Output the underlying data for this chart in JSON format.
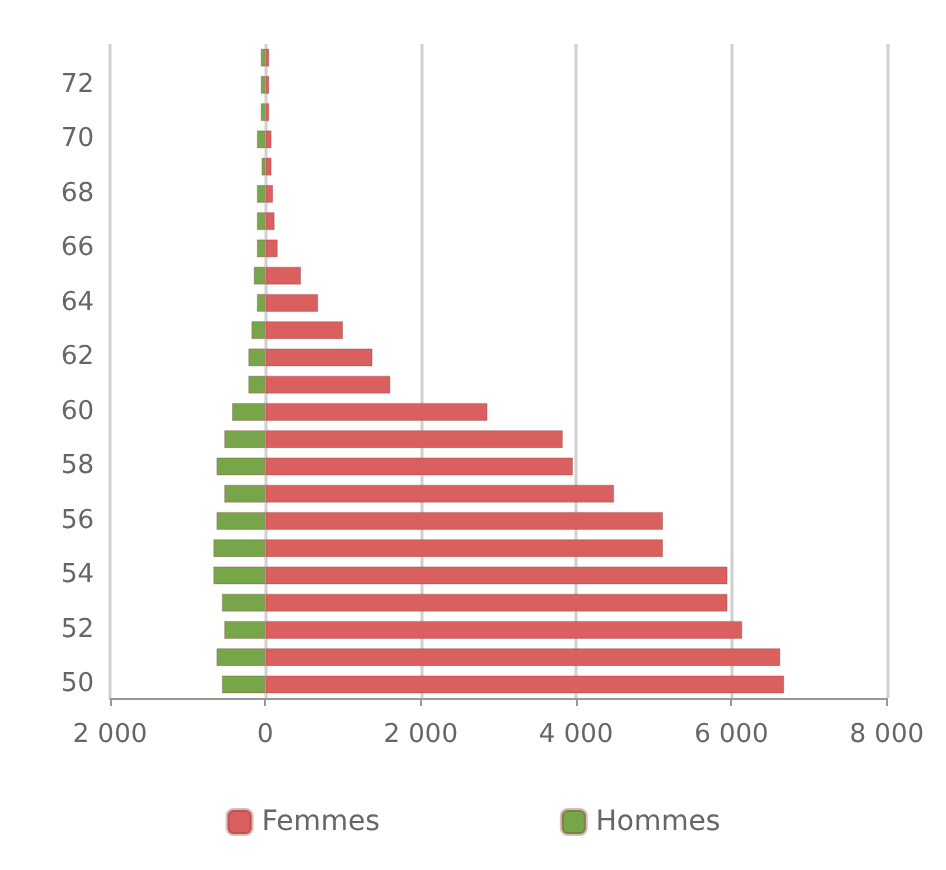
{
  "chart_data": {
    "type": "bar",
    "orientation": "horizontal",
    "categories": [
      null,
      "72",
      null,
      "70",
      null,
      "68",
      null,
      "66",
      null,
      "64",
      null,
      "62",
      null,
      "60",
      null,
      "58",
      null,
      "56",
      null,
      "54",
      null,
      "52",
      null,
      "50"
    ],
    "series": [
      {
        "name": "Femmes",
        "color": "#d9605f",
        "values": [
          50,
          50,
          50,
          80,
          80,
          100,
          120,
          160,
          460,
          680,
          1000,
          1380,
          1610,
          2860,
          3830,
          3960,
          4490,
          5120,
          5120,
          5950,
          5950,
          6140,
          6630,
          6680
        ]
      },
      {
        "name": "Hommes",
        "color": "#77a64a",
        "values": [
          -60,
          -60,
          -60,
          -110,
          -50,
          -110,
          -110,
          -110,
          -150,
          -110,
          -180,
          -220,
          -220,
          -430,
          -530,
          -630,
          -530,
          -630,
          -670,
          -670,
          -560,
          -530,
          -630,
          -560
        ]
      }
    ],
    "xlim": [
      -2000,
      8000
    ],
    "xticks": [
      {
        "value": -2000,
        "label": "2 000"
      },
      0,
      {
        "value": 2000,
        "label": "2 000"
      },
      {
        "value": 4000,
        "label": "4 000"
      },
      {
        "value": 6000,
        "label": "6 000"
      },
      {
        "value": 8000,
        "label": "8 000"
      }
    ],
    "grid": "x",
    "legend": "bottom",
    "stacked": true
  }
}
